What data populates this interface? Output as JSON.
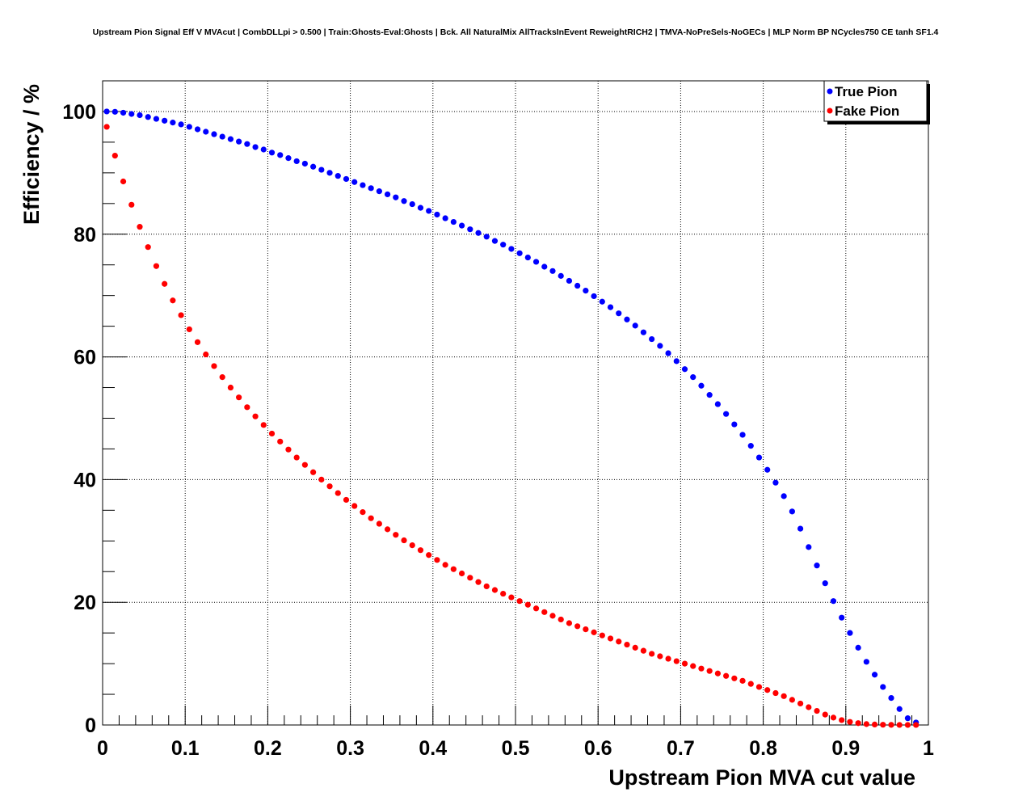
{
  "chart_data": {
    "type": "scatter",
    "title": "Upstream Pion Signal Eff V MVAcut | CombDLLpi > 0.500 | Train:Ghosts-Eval:Ghosts | Bck. All NaturalMix AllTracksInEvent ReweightRICH2 | TMVA-NoPreSels-NoGECs | MLP Norm BP NCycles750 CE tanh SF1.4",
    "xlabel": "Upstream Pion MVA cut value",
    "ylabel": "Efficiency / %",
    "xlim": [
      0,
      1
    ],
    "ylim": [
      0,
      105
    ],
    "grid": true,
    "legend_position": "top-right",
    "xticks": [
      0,
      0.1,
      0.2,
      0.3,
      0.4,
      0.5,
      0.6,
      0.7,
      0.8,
      0.9,
      1
    ],
    "xtick_labels": [
      "0",
      "0.1",
      "0.2",
      "0.3",
      "0.4",
      "0.5",
      "0.6",
      "0.7",
      "0.8",
      "0.9",
      "1"
    ],
    "yticks": [
      0,
      20,
      40,
      60,
      80,
      100
    ],
    "ytick_labels": [
      "0",
      "20",
      "40",
      "60",
      "80",
      "100"
    ],
    "x": [
      0.005,
      0.015,
      0.025,
      0.035,
      0.045,
      0.055,
      0.065,
      0.075,
      0.085,
      0.095,
      0.105,
      0.115,
      0.125,
      0.135,
      0.145,
      0.155,
      0.165,
      0.175,
      0.185,
      0.195,
      0.205,
      0.215,
      0.225,
      0.235,
      0.245,
      0.255,
      0.265,
      0.275,
      0.285,
      0.295,
      0.305,
      0.315,
      0.325,
      0.335,
      0.345,
      0.355,
      0.365,
      0.375,
      0.385,
      0.395,
      0.405,
      0.415,
      0.425,
      0.435,
      0.445,
      0.455,
      0.465,
      0.475,
      0.485,
      0.495,
      0.505,
      0.515,
      0.525,
      0.535,
      0.545,
      0.555,
      0.565,
      0.575,
      0.585,
      0.595,
      0.605,
      0.615,
      0.625,
      0.635,
      0.645,
      0.655,
      0.665,
      0.675,
      0.685,
      0.695,
      0.705,
      0.715,
      0.725,
      0.735,
      0.745,
      0.755,
      0.765,
      0.775,
      0.785,
      0.795,
      0.805,
      0.815,
      0.825,
      0.835,
      0.845,
      0.855,
      0.865,
      0.875,
      0.885,
      0.895,
      0.905,
      0.915,
      0.925,
      0.935,
      0.945,
      0.955,
      0.965,
      0.975,
      0.985
    ],
    "series": [
      {
        "name": "True Pion",
        "color": "#0000ff",
        "values": [
          100.0,
          99.95,
          99.8,
          99.6,
          99.4,
          99.1,
          98.8,
          98.5,
          98.2,
          97.9,
          97.5,
          97.1,
          96.7,
          96.3,
          95.9,
          95.5,
          95.1,
          94.7,
          94.2,
          93.8,
          93.3,
          92.9,
          92.4,
          91.9,
          91.5,
          91.0,
          90.5,
          90.0,
          89.5,
          89.0,
          88.5,
          88.0,
          87.5,
          87.0,
          86.5,
          86.0,
          85.4,
          84.9,
          84.3,
          83.8,
          83.2,
          82.6,
          82.0,
          81.4,
          80.8,
          80.2,
          79.6,
          78.9,
          78.3,
          77.6,
          76.9,
          76.2,
          75.5,
          74.7,
          74.0,
          73.2,
          72.4,
          71.6,
          70.8,
          69.9,
          69.0,
          68.1,
          67.1,
          66.1,
          65.1,
          64.0,
          62.9,
          61.8,
          60.6,
          59.3,
          58.0,
          56.7,
          55.3,
          53.8,
          52.3,
          50.7,
          49.0,
          47.3,
          45.5,
          43.6,
          41.6,
          39.5,
          37.3,
          34.8,
          32.0,
          29.0,
          26.0,
          23.1,
          20.2,
          17.5,
          15.0,
          12.6,
          10.3,
          8.2,
          6.2,
          4.4,
          2.6,
          1.1,
          0.4
        ]
      },
      {
        "name": "Fake Pion",
        "color": "#ff0000",
        "values": [
          97.5,
          92.8,
          88.6,
          84.8,
          81.2,
          77.9,
          74.8,
          71.9,
          69.2,
          66.8,
          64.5,
          62.4,
          60.4,
          58.5,
          56.7,
          55.0,
          53.4,
          51.8,
          50.3,
          48.9,
          47.5,
          46.2,
          44.9,
          43.6,
          42.4,
          41.2,
          40.0,
          38.9,
          37.8,
          36.7,
          35.7,
          34.7,
          33.7,
          32.8,
          31.9,
          31.0,
          30.1,
          29.3,
          28.5,
          27.7,
          26.9,
          26.1,
          25.4,
          24.7,
          24.0,
          23.3,
          22.6,
          22.0,
          21.4,
          20.8,
          20.2,
          19.6,
          19.0,
          18.4,
          17.8,
          17.2,
          16.6,
          16.1,
          15.6,
          15.1,
          14.6,
          14.1,
          13.6,
          13.1,
          12.6,
          12.1,
          11.6,
          11.2,
          10.8,
          10.4,
          10.0,
          9.6,
          9.2,
          8.8,
          8.4,
          8.0,
          7.6,
          7.2,
          6.7,
          6.2,
          5.7,
          5.2,
          4.7,
          4.1,
          3.5,
          2.9,
          2.3,
          1.7,
          1.2,
          0.8,
          0.5,
          0.3,
          0.15,
          0.08,
          0.04,
          0.02,
          0.01,
          0.01,
          0.01
        ]
      }
    ]
  }
}
